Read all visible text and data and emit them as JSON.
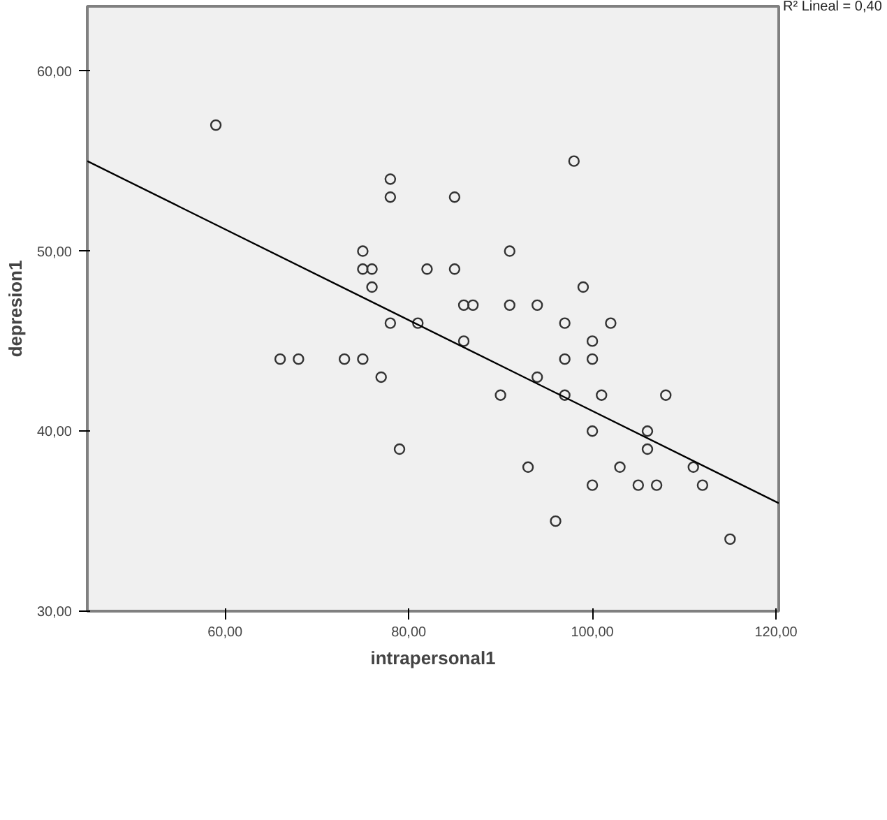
{
  "chart_data": {
    "type": "scatter",
    "xlabel": "intrapersonal1",
    "ylabel": "depresion1",
    "xlim": [
      45,
      120.3
    ],
    "ylim": [
      30,
      63.6
    ],
    "xticks": [
      {
        "value": 60,
        "label": "60,00"
      },
      {
        "value": 80,
        "label": "80,00"
      },
      {
        "value": 100,
        "label": "100,00"
      },
      {
        "value": 120,
        "label": "120,00"
      }
    ],
    "yticks": [
      {
        "value": 30,
        "label": "30,00"
      },
      {
        "value": 40,
        "label": "40,00"
      },
      {
        "value": 50,
        "label": "50,00"
      },
      {
        "value": 60,
        "label": "60,00"
      }
    ],
    "grid": false,
    "annotations": [
      "R² Lineal = 0,40"
    ],
    "series": [
      {
        "marker": "circle",
        "color": "#333333",
        "x": [
          59,
          66,
          68,
          73,
          75,
          75,
          75,
          76,
          76,
          77,
          78,
          78,
          78,
          79,
          81,
          82,
          85,
          85,
          86,
          86,
          87,
          90,
          91,
          91,
          93,
          94,
          94,
          96,
          97,
          97,
          97,
          98,
          99,
          100,
          100,
          100,
          100,
          101,
          102,
          103,
          105,
          106,
          106,
          107,
          108,
          111,
          112,
          115
        ],
        "values": [
          57,
          44,
          44,
          44,
          44,
          50,
          49,
          49,
          48,
          43,
          54,
          53,
          46,
          39,
          46,
          49,
          53,
          49,
          47,
          45,
          47,
          42,
          50,
          47,
          38,
          47,
          43,
          35,
          46,
          44,
          42,
          55,
          48,
          45,
          44,
          40,
          37,
          42,
          46,
          38,
          37,
          40,
          39,
          37,
          42,
          38,
          37,
          34
        ]
      },
      {
        "type": "line",
        "marker": "none",
        "color": "#000000",
        "x": [
          45,
          120.3
        ],
        "values": [
          55.0,
          36.0
        ]
      }
    ]
  }
}
